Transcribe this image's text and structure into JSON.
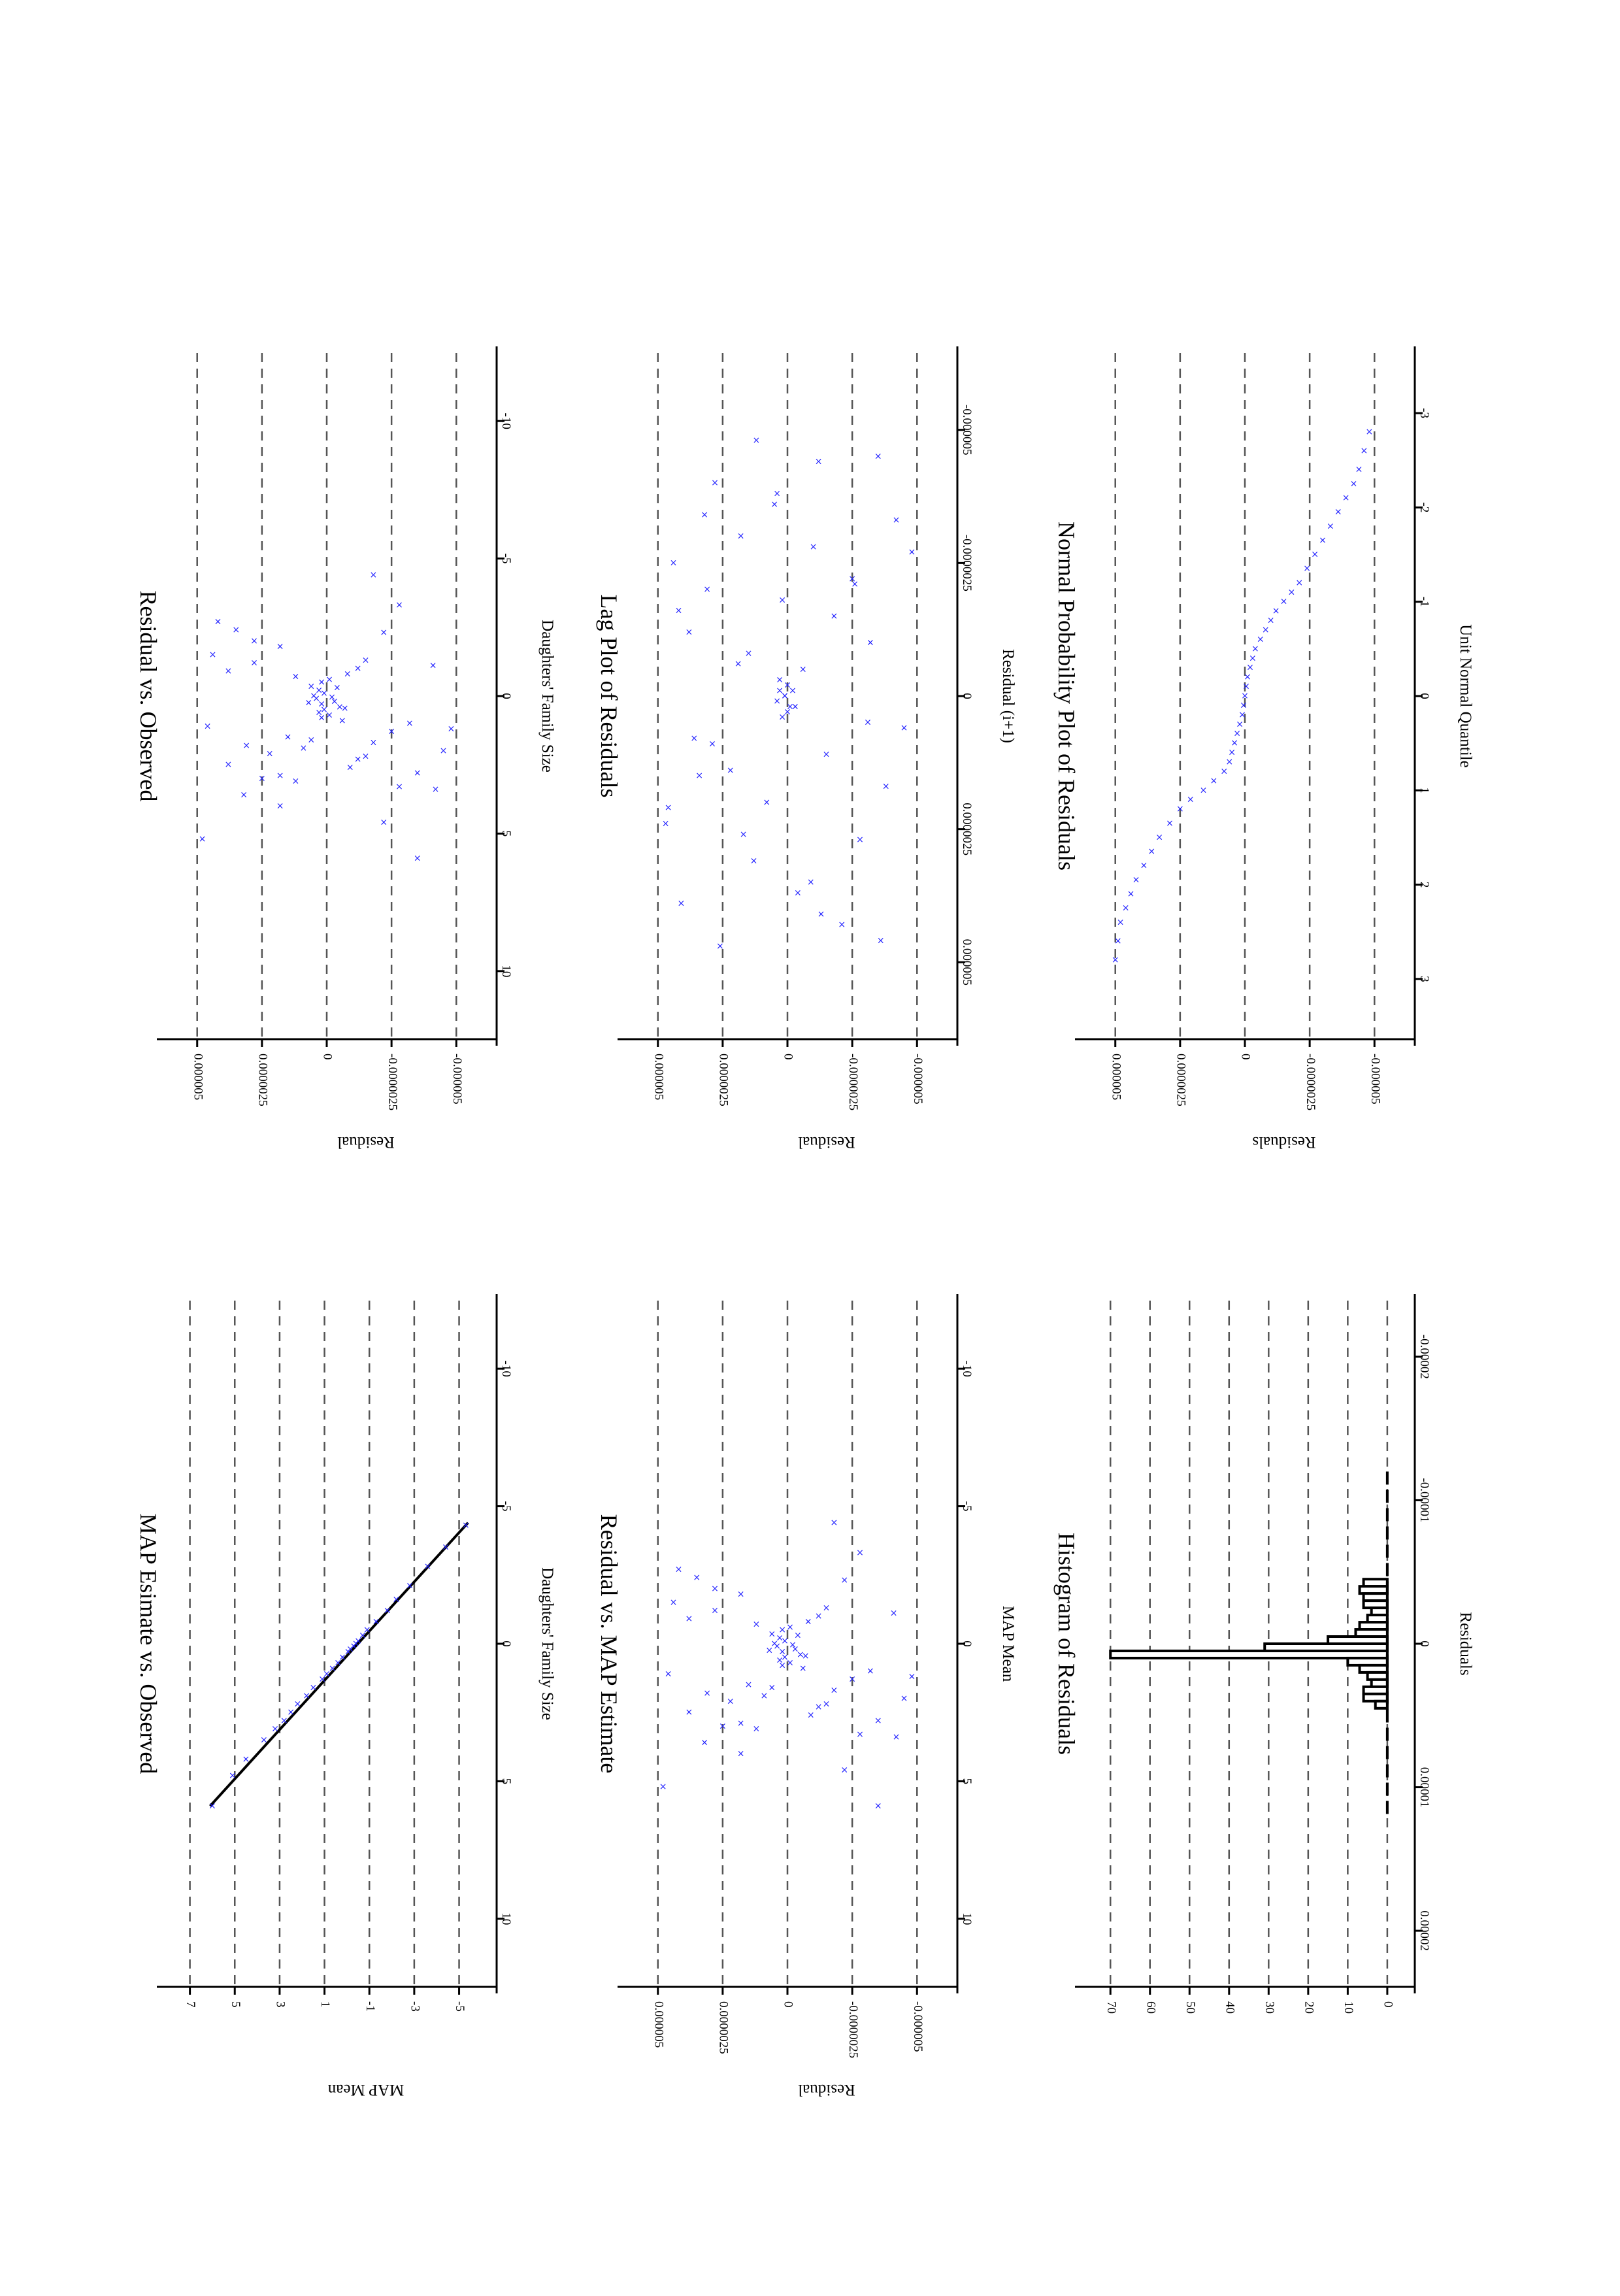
{
  "chart_data": [
    {
      "id": "map-vs-observed",
      "type": "scatter",
      "title": "MAP Esimate vs. Observed",
      "xlabel": "Daughters' Family Size",
      "ylabel": "MAP Mean",
      "xlim": [
        -12,
        12
      ],
      "ylim": [
        -5.8,
        7.6
      ],
      "xticks": [
        -10,
        -5,
        0,
        5,
        10
      ],
      "yticks": [
        -5,
        -3,
        -1,
        1,
        3,
        5,
        7
      ],
      "xtick_labels": [
        "-10",
        "-5",
        "0",
        "5",
        "10"
      ],
      "ytick_labels": [
        "-5",
        "-3",
        "-1",
        "1",
        "3",
        "5",
        "7"
      ],
      "grid": true,
      "line": {
        "x": [
          -4.4,
          5.9
        ],
        "y": [
          -5.4,
          6.1
        ]
      },
      "points": {
        "x": [
          -4.3,
          -3.5,
          -2.8,
          -2.1,
          -1.6,
          -1.2,
          -0.8,
          -0.5,
          -0.3,
          -0.1,
          0,
          0.1,
          0.2,
          0.3,
          0.5,
          0.7,
          0.9,
          1.1,
          1.3,
          1.6,
          1.9,
          2.2,
          2.5,
          2.8,
          3.1,
          3.5,
          4.2,
          4.8,
          5.9
        ],
        "y": [
          -5.3,
          -4.4,
          -3.6,
          -2.8,
          -2.2,
          -1.8,
          -1.3,
          -0.9,
          -0.7,
          -0.5,
          -0.4,
          -0.3,
          -0.15,
          -0.05,
          0.2,
          0.4,
          0.65,
          0.9,
          1.1,
          1.5,
          1.8,
          2.2,
          2.5,
          2.8,
          3.2,
          3.7,
          4.5,
          5.1,
          6.0
        ]
      }
    },
    {
      "id": "residual-vs-observed",
      "type": "scatter",
      "title": "Residual vs. Observed",
      "xlabel": "Daughters' Family Size",
      "ylabel": "Residual",
      "xlim": [
        -12,
        12
      ],
      "ylim": [
        -5.8e-06,
        5.8e-06
      ],
      "xticks": [
        -10,
        -5,
        0,
        5,
        10
      ],
      "yticks": [
        -5e-06,
        -2.5e-06,
        0,
        2.5e-06,
        5e-06
      ],
      "xtick_labels": [
        "-10",
        "-5",
        "0",
        "5",
        "10"
      ],
      "ytick_labels": [
        "-0.000005",
        "-0.0000025",
        "0",
        "0.0000025",
        "0.000005"
      ],
      "grid": true,
      "points": {
        "x": [
          -2.7,
          -2.4,
          -2.3,
          -1.8,
          -1.3,
          -1.2,
          -1.1,
          -0.9,
          -0.8,
          -0.7,
          -0.5,
          -0.3,
          -0.2,
          -0.1,
          0,
          0.05,
          0.1,
          0.2,
          0.3,
          0.4,
          0.5,
          0.6,
          0.7,
          0.8,
          1.0,
          1.1,
          1.3,
          1.5,
          1.7,
          1.8,
          2.0,
          2.1,
          2.3,
          2.5,
          2.8,
          3.0,
          3.1,
          3.3,
          3.6,
          4.0,
          4.6,
          5.2,
          5.9,
          -3.3,
          -4.4,
          -1.5,
          2.6,
          1.9,
          1.2,
          -0.6,
          0.9,
          1.6,
          2.2,
          -2.0,
          -1.0,
          0.25,
          0.45,
          -0.35,
          2.9,
          3.4
        ],
        "y": [
          4.2e-06,
          3.5e-06,
          -2.2e-06,
          1.8e-06,
          -1.5e-06,
          2.8e-06,
          -4.1e-06,
          3.8e-06,
          -8e-07,
          1.2e-06,
          2e-07,
          -4e-07,
          3e-07,
          1e-07,
          5e-07,
          -2e-07,
          4e-07,
          -3e-07,
          2e-07,
          -5e-07,
          1e-07,
          3e-07,
          -1e-07,
          2e-07,
          -3.2e-06,
          4.6e-06,
          -2.5e-06,
          1.5e-06,
          -1.8e-06,
          3.1e-06,
          -4.5e-06,
          2.2e-06,
          -1.2e-06,
          3.8e-06,
          -3.5e-06,
          2.5e-06,
          1.2e-06,
          -2.8e-06,
          3.2e-06,
          1.8e-06,
          -2.2e-06,
          4.8e-06,
          -3.5e-06,
          -2.8e-06,
          -1.8e-06,
          4.4e-06,
          -9e-07,
          9e-07,
          -4.8e-06,
          -1e-07,
          -6e-07,
          6e-07,
          -1.5e-06,
          2.8e-06,
          -1.2e-06,
          7e-07,
          -7e-07,
          6e-07,
          1.8e-06,
          -4.2e-06
        ]
      }
    },
    {
      "id": "residual-vs-map",
      "type": "scatter",
      "title": "Residual vs. MAP Estimate",
      "xlabel": "MAP Mean",
      "ylabel": "Residual",
      "xlim": [
        -12,
        12
      ],
      "ylim": [
        -5.8e-06,
        5.8e-06
      ],
      "xticks": [
        -10,
        -5,
        0,
        5,
        10
      ],
      "yticks": [
        -5e-06,
        -2.5e-06,
        0,
        2.5e-06,
        5e-06
      ],
      "xtick_labels": [
        "-10",
        "-5",
        "0",
        "5",
        "10"
      ],
      "ytick_labels": [
        "-0.000005",
        "-0.0000025",
        "0",
        "0.0000025",
        "0.000005"
      ],
      "grid": true,
      "points": {
        "x": [
          -2.7,
          -2.4,
          -2.3,
          -1.8,
          -1.3,
          -1.2,
          -1.1,
          -0.9,
          -0.8,
          -0.7,
          -0.5,
          -0.3,
          -0.2,
          -0.1,
          0,
          0.05,
          0.1,
          0.2,
          0.3,
          0.4,
          0.5,
          0.6,
          0.7,
          0.8,
          1.0,
          1.1,
          1.3,
          1.5,
          1.7,
          1.8,
          2.0,
          2.1,
          2.3,
          2.5,
          2.8,
          3.0,
          3.1,
          3.3,
          3.6,
          4.0,
          4.6,
          5.2,
          5.9,
          -3.3,
          -4.4,
          -1.5,
          2.6,
          1.9,
          1.2,
          -0.6,
          0.9,
          1.6,
          2.2,
          -2.0,
          -1.0,
          0.25,
          0.45,
          -0.35,
          2.9,
          3.4
        ],
        "y": [
          4.2e-06,
          3.5e-06,
          -2.2e-06,
          1.8e-06,
          -1.5e-06,
          2.8e-06,
          -4.1e-06,
          3.8e-06,
          -8e-07,
          1.2e-06,
          2e-07,
          -4e-07,
          3e-07,
          1e-07,
          5e-07,
          -2e-07,
          4e-07,
          -3e-07,
          2e-07,
          -5e-07,
          1e-07,
          3e-07,
          -1e-07,
          2e-07,
          -3.2e-06,
          4.6e-06,
          -2.5e-06,
          1.5e-06,
          -1.8e-06,
          3.1e-06,
          -4.5e-06,
          2.2e-06,
          -1.2e-06,
          3.8e-06,
          -3.5e-06,
          2.5e-06,
          1.2e-06,
          -2.8e-06,
          3.2e-06,
          1.8e-06,
          -2.2e-06,
          4.8e-06,
          -3.5e-06,
          -2.8e-06,
          -1.8e-06,
          4.4e-06,
          -9e-07,
          9e-07,
          -4.8e-06,
          -1e-07,
          -6e-07,
          6e-07,
          -1.5e-06,
          2.8e-06,
          -1.2e-06,
          7e-07,
          -7e-07,
          6e-07,
          1.8e-06,
          -4.2e-06
        ]
      }
    },
    {
      "id": "lag-plot",
      "type": "scatter",
      "title": "Lag Plot of Residuals",
      "xlabel": "Residual (i+1)",
      "ylabel": "Residual",
      "xlim": [
        -6.2e-06,
        6.2e-06
      ],
      "ylim": [
        -5.8e-06,
        5.8e-06
      ],
      "xticks": [
        -5e-06,
        -2.5e-06,
        0,
        2.5e-06,
        5e-06
      ],
      "yticks": [
        -5e-06,
        -2.5e-06,
        0,
        2.5e-06,
        5e-06
      ],
      "xtick_labels": [
        "-0.000005",
        "-0.0000025",
        "0",
        "0.0000025",
        "0.000005"
      ],
      "ytick_labels": [
        "-0.000005",
        "-0.0000025",
        "0",
        "0.0000025",
        "0.000005"
      ],
      "grid": true,
      "points": {
        "x": [
          -4.8e-06,
          -4.5e-06,
          -4e-06,
          -3.6e-06,
          -3.3e-06,
          -3e-06,
          -2.8e-06,
          -2.5e-06,
          -2.2e-06,
          -2e-06,
          -1.8e-06,
          -1.5e-06,
          -1.2e-06,
          -1e-06,
          -8e-07,
          -5e-07,
          -3e-07,
          -1e-07,
          0,
          1e-07,
          2e-07,
          4e-07,
          6e-07,
          8e-07,
          1.1e-06,
          1.4e-06,
          1.7e-06,
          2e-06,
          2.4e-06,
          2.7e-06,
          3.1e-06,
          3.5e-06,
          3.9e-06,
          4.3e-06,
          4.7e-06,
          -4.4e-06,
          -3.8e-06,
          -2.7e-06,
          -1.6e-06,
          -6e-07,
          5e-07,
          1.5e-06,
          2.6e-06,
          3.7e-06,
          4.6e-06,
          -2e-07,
          3e-07,
          -1e-07,
          2e-07,
          0,
          -3.4e-06,
          -2.1e-06,
          9e-07,
          2.1e-06,
          4.1e-06
        ],
        "y": [
          1.2e-06,
          -3.5e-06,
          2.8e-06,
          5e-07,
          -4.2e-06,
          1.8e-06,
          -1e-06,
          4.4e-06,
          -2.5e-06,
          3.1e-06,
          2e-07,
          -1.8e-06,
          3.8e-06,
          -3.2e-06,
          1.5e-06,
          -6e-07,
          3e-07,
          -2e-07,
          1e-07,
          4e-07,
          -1e-07,
          2e-07,
          -4.5e-06,
          3.6e-06,
          -1.5e-06,
          2.2e-06,
          -3.8e-06,
          8e-07,
          4.7e-06,
          -2.8e-06,
          1.3e-06,
          -9e-07,
          4.1e-06,
          -2.1e-06,
          2.6e-06,
          -1.2e-06,
          4e-07,
          -4.8e-06,
          4.2e-06,
          1.9e-06,
          -3.1e-06,
          3.4e-06,
          1.7e-06,
          -4e-07,
          -3.6e-06,
          0.0,
          0.0,
          3e-07,
          -3e-07,
          1e-07,
          3.2e-06,
          -2.6e-06,
          2.9e-06,
          4.6e-06,
          -1.3e-06
        ]
      }
    },
    {
      "id": "histogram",
      "type": "bar",
      "title": "Histogram of Residuals",
      "xlabel": "Residuals",
      "ylabel": "",
      "xlim": [
        -2.3e-05,
        2.3e-05
      ],
      "ylim": [
        -2,
        74
      ],
      "xticks": [
        -2e-05,
        -1e-05,
        0,
        1e-05,
        2e-05
      ],
      "yticks": [
        0,
        10,
        20,
        30,
        40,
        50,
        60,
        70
      ],
      "xtick_labels": [
        "-0.00002",
        "-0.00001",
        "0",
        "0.00001",
        "0.00002"
      ],
      "ytick_labels": [
        "0",
        "10",
        "20",
        "30",
        "40",
        "50",
        "60",
        "70"
      ],
      "grid": true,
      "bins": {
        "left": [
          -4.5e-06,
          -4e-06,
          -3.5e-06,
          -3e-06,
          -2.5e-06,
          -2e-06,
          -1.5e-06,
          -1e-06,
          -5e-07,
          0,
          5e-07,
          1e-06,
          1.5e-06,
          2e-06,
          2.5e-06,
          3e-06,
          3.5e-06,
          4e-06
        ],
        "counts": [
          6,
          7,
          6,
          6,
          4,
          5,
          7,
          8,
          15,
          31,
          70,
          10,
          7,
          5,
          4,
          6,
          6,
          3
        ],
        "width": 5e-07
      },
      "density_curve": {
        "x": [
          -1.2e-05,
          1.2e-05
        ],
        "y": [
          0,
          0
        ]
      }
    },
    {
      "id": "normal-probability",
      "type": "scatter",
      "title": "Normal Probability Plot of Residuals",
      "xlabel": "Unit Normal Quantile",
      "ylabel": "Residuals",
      "xlim": [
        -3.5,
        3.5
      ],
      "ylim": [
        -5.8e-06,
        5.8e-06
      ],
      "xticks": [
        -3,
        -2,
        -1,
        0,
        1,
        2,
        3
      ],
      "yticks": [
        -5e-06,
        -2.5e-06,
        0,
        2.5e-06,
        5e-06
      ],
      "xtick_labels": [
        "-3",
        "-2",
        "-1",
        "0",
        "1",
        "2",
        "3"
      ],
      "ytick_labels": [
        "-0.000005",
        "-0.0000025",
        "0",
        "0.0000025",
        "0.000005"
      ],
      "grid": true,
      "points": {
        "x": [
          -2.8,
          -2.6,
          -2.4,
          -2.25,
          -2.1,
          -1.95,
          -1.8,
          -1.65,
          -1.5,
          -1.35,
          -1.2,
          -1.1,
          -1.0,
          -0.9,
          -0.8,
          -0.7,
          -0.6,
          -0.5,
          -0.4,
          -0.3,
          -0.2,
          -0.1,
          0,
          0.1,
          0.2,
          0.3,
          0.4,
          0.5,
          0.6,
          0.7,
          0.8,
          0.9,
          1.0,
          1.1,
          1.2,
          1.35,
          1.5,
          1.65,
          1.8,
          1.95,
          2.1,
          2.25,
          2.4,
          2.6,
          2.8
        ],
        "y": [
          -4.8e-06,
          -4.6e-06,
          -4.4e-06,
          -4.2e-06,
          -3.9e-06,
          -3.6e-06,
          -3.3e-06,
          -3e-06,
          -2.7e-06,
          -2.4e-06,
          -2.1e-06,
          -1.8e-06,
          -1.5e-06,
          -1.2e-06,
          -1e-06,
          -8e-07,
          -6e-07,
          -4e-07,
          -3e-07,
          -2e-07,
          -1e-07,
          -5e-08,
          0,
          5e-08,
          1e-07,
          2e-07,
          3e-07,
          4e-07,
          5e-07,
          6e-07,
          8e-07,
          1.2e-06,
          1.6e-06,
          2.1e-06,
          2.5e-06,
          2.9e-06,
          3.3e-06,
          3.6e-06,
          3.9e-06,
          4.2e-06,
          4.4e-06,
          4.6e-06,
          4.8e-06,
          4.9e-06,
          5e-06
        ]
      }
    }
  ]
}
